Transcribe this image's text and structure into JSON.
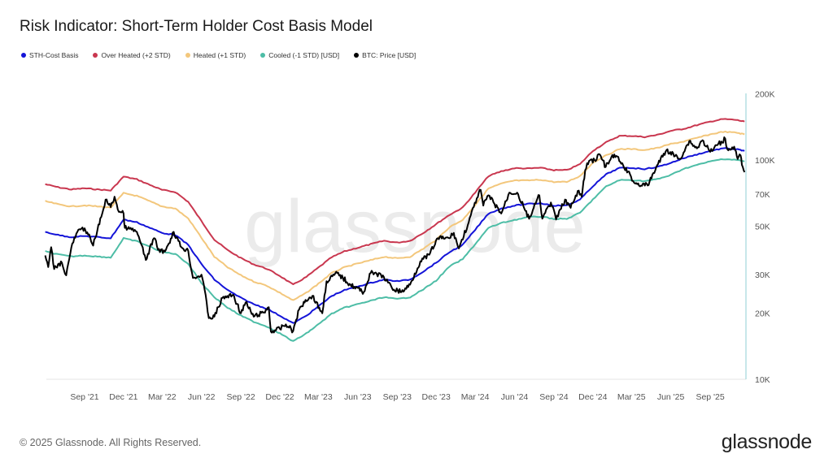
{
  "header": {
    "title": "Risk Indicator: Short-Term Holder Cost Basis Model"
  },
  "footer": {
    "copyright": "© 2025 Glassnode. All Rights Reserved.",
    "logo": "glassnode"
  },
  "watermark": "glassnode",
  "chart_data": {
    "type": "line",
    "title": "Risk Indicator: Short-Term Holder Cost Basis Model",
    "y_scale": "log",
    "ylim": [
      10000,
      200000
    ],
    "y_ticks": [
      {
        "v": 10000,
        "label": "10K"
      },
      {
        "v": 20000,
        "label": "20K"
      },
      {
        "v": 30000,
        "label": "30K"
      },
      {
        "v": 50000,
        "label": "50K"
      },
      {
        "v": 70000,
        "label": "70K"
      },
      {
        "v": 100000,
        "label": "100K"
      },
      {
        "v": 200000,
        "label": "200K"
      }
    ],
    "x_ticks": [
      {
        "date": "2021-09-01",
        "label": "Sep '21"
      },
      {
        "date": "2021-12-01",
        "label": "Dec '21"
      },
      {
        "date": "2022-03-01",
        "label": "Mar '22"
      },
      {
        "date": "2022-06-01",
        "label": "Jun '22"
      },
      {
        "date": "2022-09-01",
        "label": "Sep '22"
      },
      {
        "date": "2022-12-01",
        "label": "Dec '22"
      },
      {
        "date": "2023-03-01",
        "label": "Mar '23"
      },
      {
        "date": "2023-06-01",
        "label": "Jun '23"
      },
      {
        "date": "2023-09-01",
        "label": "Sep '23"
      },
      {
        "date": "2023-12-01",
        "label": "Dec '23"
      },
      {
        "date": "2024-03-01",
        "label": "Mar '24"
      },
      {
        "date": "2024-06-01",
        "label": "Jun '24"
      },
      {
        "date": "2024-09-01",
        "label": "Sep '24"
      },
      {
        "date": "2024-12-01",
        "label": "Dec '24"
      },
      {
        "date": "2025-03-01",
        "label": "Mar '25"
      },
      {
        "date": "2025-06-01",
        "label": "Jun '25"
      },
      {
        "date": "2025-09-01",
        "label": "Sep '25"
      }
    ],
    "xlim": [
      "2021-06-01",
      "2025-11-20"
    ],
    "grid": false,
    "legend": "top-left",
    "dates": [
      "2021-06-01",
      "2021-07-01",
      "2021-08-01",
      "2021-09-01",
      "2021-10-01",
      "2021-11-01",
      "2021-12-01",
      "2022-01-01",
      "2022-02-01",
      "2022-03-01",
      "2022-04-01",
      "2022-05-01",
      "2022-06-01",
      "2022-07-01",
      "2022-08-01",
      "2022-09-01",
      "2022-10-01",
      "2022-11-01",
      "2022-12-01",
      "2023-01-01",
      "2023-02-01",
      "2023-03-01",
      "2023-04-01",
      "2023-05-01",
      "2023-06-01",
      "2023-07-01",
      "2023-08-01",
      "2023-09-01",
      "2023-10-01",
      "2023-11-01",
      "2023-12-01",
      "2024-01-01",
      "2024-02-01",
      "2024-03-01",
      "2024-04-01",
      "2024-05-01",
      "2024-06-01",
      "2024-07-01",
      "2024-08-01",
      "2024-09-01",
      "2024-10-01",
      "2024-11-01",
      "2024-12-01",
      "2025-01-01",
      "2025-02-01",
      "2025-03-01",
      "2025-04-01",
      "2025-05-01",
      "2025-06-01",
      "2025-07-01",
      "2025-08-01",
      "2025-09-01",
      "2025-10-01",
      "2025-11-01",
      "2025-11-20"
    ],
    "series": [
      {
        "name": "Over Heated (+2 STD)",
        "color": "#c9374f",
        "values": [
          77600,
          75100,
          73400,
          74300,
          73400,
          72600,
          84000,
          81600,
          76900,
          73000,
          71400,
          64400,
          52600,
          43300,
          38800,
          35700,
          33400,
          31900,
          29600,
          27000,
          29300,
          32300,
          36000,
          38300,
          39800,
          41300,
          42800,
          42000,
          42800,
          46500,
          51000,
          56200,
          60700,
          71000,
          84400,
          88800,
          91800,
          91400,
          92100,
          89900,
          89900,
          95700,
          110200,
          120400,
          128800,
          128800,
          127400,
          130200,
          135800,
          138700,
          144200,
          149600,
          153700,
          152300,
          149600
        ]
      },
      {
        "name": "Heated (+1 STD)",
        "color": "#f3c77c",
        "values": [
          64900,
          62800,
          61400,
          62100,
          61400,
          60700,
          70600,
          68600,
          64700,
          61400,
          60100,
          54100,
          44200,
          36200,
          32400,
          29800,
          27900,
          26700,
          24800,
          22900,
          24800,
          27300,
          30500,
          32400,
          33700,
          34900,
          36200,
          35600,
          36200,
          39400,
          43200,
          49400,
          53300,
          62400,
          74100,
          78000,
          80600,
          80600,
          81300,
          79400,
          79400,
          84500,
          97300,
          104900,
          112200,
          112200,
          111000,
          113500,
          118300,
          121400,
          126100,
          130900,
          134500,
          133300,
          130900
        ]
      },
      {
        "name": "STH-Cost Basis",
        "color": "#1414d8",
        "values": [
          47000,
          45500,
          44500,
          45000,
          44500,
          44000,
          53500,
          52000,
          49000,
          46500,
          45500,
          41000,
          33500,
          28500,
          25500,
          23500,
          22000,
          21000,
          19500,
          18000,
          19500,
          21500,
          24000,
          25500,
          26500,
          27500,
          28500,
          28000,
          28500,
          31000,
          34000,
          38000,
          41000,
          48000,
          57000,
          60000,
          62000,
          63000,
          63500,
          62000,
          62000,
          66000,
          76000,
          86000,
          92000,
          92000,
          91000,
          93000,
          97000,
          102000,
          106000,
          110000,
          113000,
          112000,
          110000
        ]
      },
      {
        "name": "Cooled (-1 STD) [USD]",
        "color": "#4dbda6",
        "values": [
          38300,
          37100,
          36300,
          36700,
          36300,
          35900,
          43900,
          42600,
          40200,
          38100,
          37300,
          33600,
          27500,
          23700,
          21200,
          19500,
          18300,
          17400,
          16200,
          14900,
          16200,
          17800,
          19900,
          21200,
          22000,
          22800,
          23700,
          23200,
          23700,
          25700,
          28200,
          32700,
          35300,
          41300,
          49000,
          51600,
          53300,
          54800,
          55200,
          53900,
          53900,
          57400,
          66100,
          75700,
          81000,
          81000,
          80100,
          81800,
          85400,
          91300,
          94900,
          98500,
          101100,
          100200,
          98500
        ]
      }
    ],
    "price_series": {
      "name": "BTC: Price [USD]",
      "color": "#000000",
      "points": [
        [
          "2021-06-01",
          36700
        ],
        [
          "2021-06-08",
          32500
        ],
        [
          "2021-06-15",
          40000
        ],
        [
          "2021-06-22",
          31800
        ],
        [
          "2021-07-01",
          33500
        ],
        [
          "2021-07-10",
          34000
        ],
        [
          "2021-07-20",
          29800
        ],
        [
          "2021-08-01",
          39900
        ],
        [
          "2021-08-15",
          47000
        ],
        [
          "2021-09-01",
          48800
        ],
        [
          "2021-09-07",
          46800
        ],
        [
          "2021-09-21",
          40700
        ],
        [
          "2021-10-01",
          48000
        ],
        [
          "2021-10-10",
          55000
        ],
        [
          "2021-10-20",
          66000
        ],
        [
          "2021-11-01",
          61000
        ],
        [
          "2021-11-10",
          68000
        ],
        [
          "2021-11-20",
          58000
        ],
        [
          "2021-12-01",
          57000
        ],
        [
          "2021-12-04",
          49000
        ],
        [
          "2021-12-15",
          48500
        ],
        [
          "2022-01-01",
          47000
        ],
        [
          "2022-01-10",
          41800
        ],
        [
          "2022-01-22",
          35000
        ],
        [
          "2022-02-10",
          44000
        ],
        [
          "2022-02-24",
          38000
        ],
        [
          "2022-03-10",
          39000
        ],
        [
          "2022-03-28",
          47000
        ],
        [
          "2022-04-15",
          40000
        ],
        [
          "2022-05-01",
          38500
        ],
        [
          "2022-05-12",
          29000
        ],
        [
          "2022-05-25",
          29500
        ],
        [
          "2022-06-01",
          30000
        ],
        [
          "2022-06-13",
          22500
        ],
        [
          "2022-06-18",
          19000
        ],
        [
          "2022-07-01",
          19300
        ],
        [
          "2022-07-20",
          23500
        ],
        [
          "2022-08-14",
          24300
        ],
        [
          "2022-09-01",
          20000
        ],
        [
          "2022-09-12",
          22400
        ],
        [
          "2022-10-01",
          19300
        ],
        [
          "2022-10-25",
          20200
        ],
        [
          "2022-11-05",
          21300
        ],
        [
          "2022-11-10",
          16500
        ],
        [
          "2022-12-01",
          17000
        ],
        [
          "2022-12-15",
          17800
        ],
        [
          "2023-01-01",
          16600
        ],
        [
          "2023-01-15",
          20800
        ],
        [
          "2023-01-30",
          23000
        ],
        [
          "2023-02-15",
          24000
        ],
        [
          "2023-03-10",
          20000
        ],
        [
          "2023-03-20",
          28000
        ],
        [
          "2023-04-14",
          30500
        ],
        [
          "2023-05-15",
          27000
        ],
        [
          "2023-06-15",
          25000
        ],
        [
          "2023-07-01",
          30500
        ],
        [
          "2023-07-15",
          30300
        ],
        [
          "2023-08-01",
          29200
        ],
        [
          "2023-08-20",
          26000
        ],
        [
          "2023-09-11",
          25000
        ],
        [
          "2023-10-01",
          27000
        ],
        [
          "2023-10-25",
          34500
        ],
        [
          "2023-11-15",
          37000
        ],
        [
          "2023-12-05",
          44000
        ],
        [
          "2024-01-01",
          44000
        ],
        [
          "2024-01-11",
          46500
        ],
        [
          "2024-01-23",
          39500
        ],
        [
          "2024-02-15",
          52000
        ],
        [
          "2024-03-05",
          67000
        ],
        [
          "2024-03-14",
          73000
        ],
        [
          "2024-03-20",
          62000
        ],
        [
          "2024-04-01",
          69000
        ],
        [
          "2024-04-13",
          64000
        ],
        [
          "2024-05-01",
          57000
        ],
        [
          "2024-05-20",
          71000
        ],
        [
          "2024-06-07",
          71000
        ],
        [
          "2024-06-24",
          60000
        ],
        [
          "2024-07-05",
          54000
        ],
        [
          "2024-07-29",
          69000
        ],
        [
          "2024-08-05",
          54000
        ],
        [
          "2024-08-25",
          64000
        ],
        [
          "2024-09-06",
          53500
        ],
        [
          "2024-09-27",
          66000
        ],
        [
          "2024-10-10",
          60500
        ],
        [
          "2024-10-29",
          72500
        ],
        [
          "2024-11-05",
          68000
        ],
        [
          "2024-11-13",
          90000
        ],
        [
          "2024-11-22",
          99000
        ],
        [
          "2024-12-05",
          100000
        ],
        [
          "2024-12-17",
          106000
        ],
        [
          "2024-12-31",
          93000
        ],
        [
          "2025-01-20",
          106000
        ],
        [
          "2025-02-03",
          98000
        ],
        [
          "2025-02-28",
          84000
        ],
        [
          "2025-03-10",
          78000
        ],
        [
          "2025-04-08",
          76500
        ],
        [
          "2025-04-30",
          94500
        ],
        [
          "2025-05-22",
          111000
        ],
        [
          "2025-06-22",
          101000
        ],
        [
          "2025-07-14",
          122000
        ],
        [
          "2025-08-01",
          113000
        ],
        [
          "2025-08-14",
          123000
        ],
        [
          "2025-09-01",
          109000
        ],
        [
          "2025-09-18",
          117000
        ],
        [
          "2025-10-06",
          125000
        ],
        [
          "2025-10-11",
          112000
        ],
        [
          "2025-10-27",
          115000
        ],
        [
          "2025-11-04",
          101000
        ],
        [
          "2025-11-11",
          105000
        ],
        [
          "2025-11-14",
          95000
        ],
        [
          "2025-11-20",
          88000
        ]
      ]
    }
  },
  "legend": [
    {
      "label": "STH-Cost Basis",
      "color": "#1414d8"
    },
    {
      "label": "Over Heated (+2 STD)",
      "color": "#c9374f"
    },
    {
      "label": "Heated (+1 STD)",
      "color": "#f3c77c"
    },
    {
      "label": "Cooled (-1 STD) [USD]",
      "color": "#4dbda6"
    },
    {
      "label": "BTC: Price [USD]",
      "color": "#000000"
    }
  ]
}
